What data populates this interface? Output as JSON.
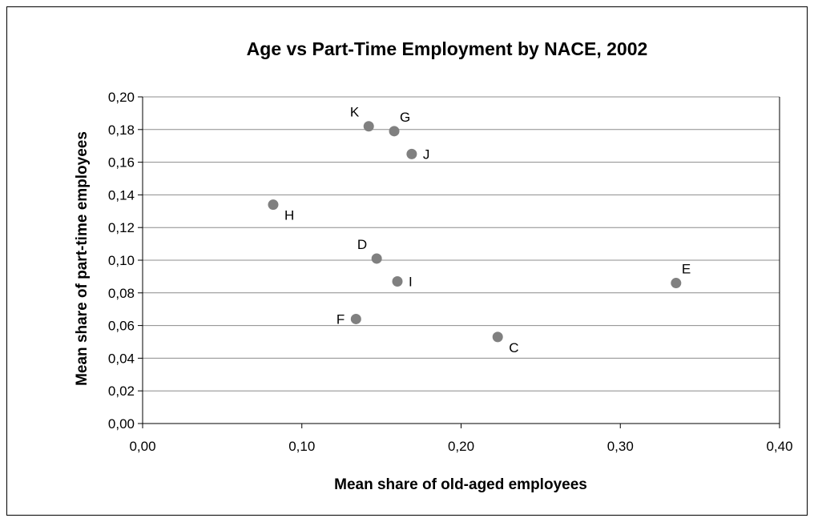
{
  "chart_data": {
    "type": "scatter",
    "title": "Age vs Part-Time Employment by NACE, 2002",
    "xlabel": "Mean share of old-aged employees",
    "ylabel": "Mean share of part-time employees",
    "xlim": [
      0,
      0.4
    ],
    "ylim": [
      0,
      0.2
    ],
    "x_ticks": [
      "0,00",
      "0,10",
      "0,20",
      "0,30",
      "0,40"
    ],
    "y_ticks": [
      "0,00",
      "0,02",
      "0,04",
      "0,06",
      "0,08",
      "0,10",
      "0,12",
      "0,14",
      "0,16",
      "0,18",
      "0,20"
    ],
    "grid": "horizontal",
    "legend": "none",
    "marker_color": "#808080",
    "points": [
      {
        "label": "K",
        "x": 0.142,
        "y": 0.182,
        "label_pos": "left-above"
      },
      {
        "label": "G",
        "x": 0.158,
        "y": 0.179,
        "label_pos": "right-above"
      },
      {
        "label": "J",
        "x": 0.169,
        "y": 0.165,
        "label_pos": "right"
      },
      {
        "label": "H",
        "x": 0.082,
        "y": 0.134,
        "label_pos": "right-below"
      },
      {
        "label": "D",
        "x": 0.147,
        "y": 0.101,
        "label_pos": "left-above"
      },
      {
        "label": "I",
        "x": 0.16,
        "y": 0.087,
        "label_pos": "right"
      },
      {
        "label": "E",
        "x": 0.335,
        "y": 0.086,
        "label_pos": "right-above"
      },
      {
        "label": "F",
        "x": 0.134,
        "y": 0.064,
        "label_pos": "left"
      },
      {
        "label": "C",
        "x": 0.223,
        "y": 0.053,
        "label_pos": "right-below"
      }
    ]
  }
}
